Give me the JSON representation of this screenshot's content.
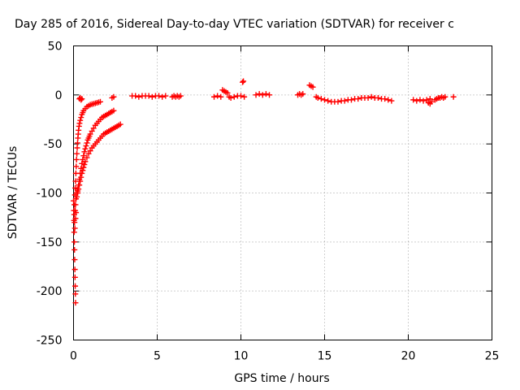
{
  "chart_data": {
    "type": "scatter",
    "title": "Day 285 of 2016, Sidereal Day-to-day VTEC variation (SDTVAR) for receiver c",
    "xlabel": "GPS time / hours",
    "ylabel": "SDTVAR / TECUs",
    "xlim": [
      0,
      25
    ],
    "ylim": [
      -250,
      50
    ],
    "xticks": [
      0,
      5,
      10,
      15,
      20,
      25
    ],
    "yticks": [
      50,
      0,
      -50,
      -100,
      -150,
      -200,
      -250
    ],
    "grid": true,
    "marker": "+",
    "color": "#ff0000",
    "series": [
      {
        "points": [
          [
            0.0,
            -108
          ],
          [
            0.02,
            -118
          ],
          [
            0.03,
            -128
          ],
          [
            0.04,
            -140
          ],
          [
            0.05,
            -150
          ],
          [
            0.06,
            -158
          ],
          [
            0.07,
            -168
          ],
          [
            0.08,
            -178
          ],
          [
            0.09,
            -186
          ],
          [
            0.1,
            -195
          ],
          [
            0.11,
            -203
          ],
          [
            0.12,
            -212
          ],
          [
            0.05,
            -112
          ],
          [
            0.08,
            -102
          ],
          [
            0.1,
            -95
          ],
          [
            0.12,
            -88
          ],
          [
            0.14,
            -80
          ],
          [
            0.16,
            -73
          ],
          [
            0.18,
            -66
          ],
          [
            0.2,
            -60
          ],
          [
            0.22,
            -54
          ],
          [
            0.24,
            -49
          ],
          [
            0.26,
            -44
          ],
          [
            0.28,
            -40
          ],
          [
            0.3,
            -36
          ],
          [
            0.33,
            -32
          ],
          [
            0.36,
            -29
          ],
          [
            0.4,
            -26
          ],
          [
            0.45,
            -23
          ],
          [
            0.5,
            -20
          ],
          [
            0.55,
            -18
          ],
          [
            0.6,
            -16
          ],
          [
            0.7,
            -14
          ],
          [
            0.8,
            -12
          ],
          [
            0.9,
            -11
          ],
          [
            1.0,
            -10
          ],
          [
            1.1,
            -9.5
          ],
          [
            1.2,
            -9
          ],
          [
            1.3,
            -8.5
          ],
          [
            1.4,
            -8
          ],
          [
            1.5,
            -7.5
          ],
          [
            1.6,
            -7
          ],
          [
            0.2,
            -104
          ],
          [
            0.25,
            -98
          ],
          [
            0.3,
            -92
          ],
          [
            0.35,
            -86
          ],
          [
            0.4,
            -80
          ],
          [
            0.45,
            -75
          ],
          [
            0.5,
            -70
          ],
          [
            0.55,
            -66
          ],
          [
            0.6,
            -62
          ],
          [
            0.65,
            -58
          ],
          [
            0.7,
            -55
          ],
          [
            0.75,
            -52
          ],
          [
            0.8,
            -49
          ],
          [
            0.85,
            -46
          ],
          [
            0.9,
            -44
          ],
          [
            0.95,
            -42
          ],
          [
            1.0,
            -40
          ],
          [
            1.1,
            -37
          ],
          [
            1.2,
            -34
          ],
          [
            1.3,
            -31
          ],
          [
            1.4,
            -29
          ],
          [
            1.5,
            -27
          ],
          [
            1.6,
            -25
          ],
          [
            1.7,
            -23
          ],
          [
            1.8,
            -22
          ],
          [
            1.9,
            -21
          ],
          [
            2.0,
            -20
          ],
          [
            2.1,
            -19
          ],
          [
            2.2,
            -18
          ],
          [
            2.3,
            -17
          ],
          [
            2.4,
            -16
          ],
          [
            0.25,
            -100
          ],
          [
            0.3,
            -96
          ],
          [
            0.35,
            -92
          ],
          [
            0.4,
            -88
          ],
          [
            0.45,
            -84
          ],
          [
            0.5,
            -80
          ],
          [
            0.55,
            -77
          ],
          [
            0.6,
            -74
          ],
          [
            0.65,
            -71
          ],
          [
            0.7,
            -68
          ],
          [
            0.8,
            -64
          ],
          [
            0.9,
            -60
          ],
          [
            1.0,
            -57
          ],
          [
            1.1,
            -54
          ],
          [
            1.2,
            -52
          ],
          [
            1.3,
            -50
          ],
          [
            1.4,
            -48
          ],
          [
            1.5,
            -46
          ],
          [
            1.6,
            -44
          ],
          [
            1.7,
            -42
          ],
          [
            1.8,
            -40
          ],
          [
            1.9,
            -39
          ],
          [
            2.0,
            -38
          ],
          [
            2.1,
            -37
          ],
          [
            2.2,
            -36
          ],
          [
            2.3,
            -35
          ],
          [
            2.4,
            -34
          ],
          [
            2.5,
            -33
          ],
          [
            2.6,
            -32
          ],
          [
            2.7,
            -31
          ],
          [
            2.8,
            -30
          ],
          [
            0.04,
            -122
          ],
          [
            0.06,
            -130
          ],
          [
            0.08,
            -136
          ],
          [
            0.1,
            -118
          ],
          [
            0.12,
            -112
          ],
          [
            0.15,
            -106
          ],
          [
            0.18,
            -100
          ],
          [
            0.22,
            -96
          ],
          [
            0.15,
            -120
          ],
          [
            0.12,
            -126
          ],
          [
            0.35,
            -4
          ],
          [
            0.4,
            -3
          ],
          [
            0.45,
            -5
          ],
          [
            0.5,
            -4
          ],
          [
            2.3,
            -3
          ],
          [
            2.4,
            -2
          ],
          [
            3.5,
            -1
          ],
          [
            3.7,
            -1
          ],
          [
            3.9,
            -2
          ],
          [
            4.1,
            -1
          ],
          [
            4.3,
            -1
          ],
          [
            4.5,
            -1
          ],
          [
            4.7,
            -2
          ],
          [
            4.9,
            -1
          ],
          [
            5.1,
            -1
          ],
          [
            5.3,
            -2
          ],
          [
            5.5,
            -1
          ],
          [
            5.9,
            -2
          ],
          [
            6.0,
            -1
          ],
          [
            6.1,
            -2
          ],
          [
            6.2,
            -1
          ],
          [
            6.3,
            -2
          ],
          [
            6.4,
            -1
          ],
          [
            8.4,
            -2
          ],
          [
            8.6,
            -1
          ],
          [
            8.8,
            -2
          ],
          [
            8.9,
            5
          ],
          [
            9.0,
            4
          ],
          [
            9.1,
            3
          ],
          [
            9.2,
            2
          ],
          [
            9.3,
            -2
          ],
          [
            9.4,
            -3
          ],
          [
            9.6,
            -2
          ],
          [
            9.8,
            -1
          ],
          [
            10.0,
            -1
          ],
          [
            10.2,
            -2
          ],
          [
            10.1,
            13
          ],
          [
            10.15,
            14
          ],
          [
            10.9,
            0
          ],
          [
            11.1,
            1
          ],
          [
            11.3,
            0
          ],
          [
            11.5,
            1
          ],
          [
            11.7,
            0
          ],
          [
            13.4,
            0
          ],
          [
            13.5,
            1
          ],
          [
            13.6,
            0
          ],
          [
            13.7,
            1
          ],
          [
            14.1,
            10
          ],
          [
            14.2,
            9
          ],
          [
            14.3,
            8
          ],
          [
            14.5,
            -2
          ],
          [
            14.6,
            -3
          ],
          [
            14.8,
            -4
          ],
          [
            15.0,
            -5
          ],
          [
            15.2,
            -6
          ],
          [
            15.4,
            -7
          ],
          [
            15.6,
            -7
          ],
          [
            15.8,
            -7
          ],
          [
            16.0,
            -6
          ],
          [
            16.2,
            -6
          ],
          [
            16.4,
            -5
          ],
          [
            16.6,
            -5
          ],
          [
            16.8,
            -4
          ],
          [
            17.0,
            -4
          ],
          [
            17.2,
            -3
          ],
          [
            17.4,
            -3
          ],
          [
            17.6,
            -3
          ],
          [
            17.8,
            -2
          ],
          [
            18.0,
            -3
          ],
          [
            18.2,
            -3
          ],
          [
            18.4,
            -4
          ],
          [
            18.6,
            -4
          ],
          [
            18.8,
            -5
          ],
          [
            19.0,
            -6
          ],
          [
            20.3,
            -5
          ],
          [
            20.5,
            -6
          ],
          [
            20.7,
            -5
          ],
          [
            20.9,
            -6
          ],
          [
            21.1,
            -5
          ],
          [
            21.3,
            -4
          ],
          [
            21.2,
            -8
          ],
          [
            21.3,
            -9
          ],
          [
            21.4,
            -7
          ],
          [
            21.6,
            -5
          ],
          [
            21.7,
            -4
          ],
          [
            21.8,
            -3
          ],
          [
            21.9,
            -3
          ],
          [
            22.0,
            -2
          ],
          [
            22.1,
            -3
          ],
          [
            22.2,
            -2
          ],
          [
            22.7,
            -2
          ]
        ]
      }
    ]
  }
}
